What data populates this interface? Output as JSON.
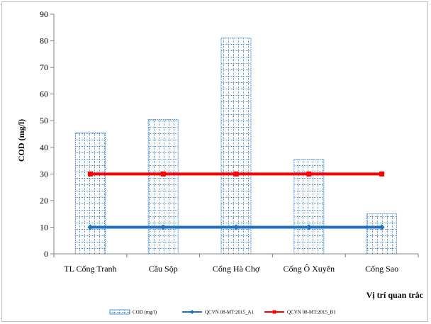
{
  "chart_data": {
    "type": "bar",
    "categories": [
      "TL Cống Tranh",
      "Cầu Sộp",
      "Cống Hà Chợ",
      "Cống Ô Xuyên",
      "Cống Sao"
    ],
    "series": [
      {
        "name": "COD (mg/l)",
        "kind": "bar",
        "values": [
          45.5,
          50.5,
          81,
          35.5,
          15
        ],
        "color": "#4a90d9"
      },
      {
        "name": "QCVN 08-MT:2015_A1",
        "kind": "line",
        "values": [
          10,
          10,
          10,
          10,
          10
        ],
        "color": "#1f6fc5"
      },
      {
        "name": "QCVN 08-MT:2015_B1",
        "kind": "line",
        "values": [
          30,
          30,
          30,
          30,
          30
        ],
        "color": "#ff0000"
      }
    ],
    "yticks": [
      "0",
      "10",
      "20",
      "30",
      "40",
      "50",
      "60",
      "70",
      "80",
      "90"
    ],
    "ylim": [
      0,
      90
    ],
    "ylabel": "COD (mg/l)",
    "xlabel": "Vị trí quan trắc",
    "grid": false,
    "legend": "bottom"
  }
}
